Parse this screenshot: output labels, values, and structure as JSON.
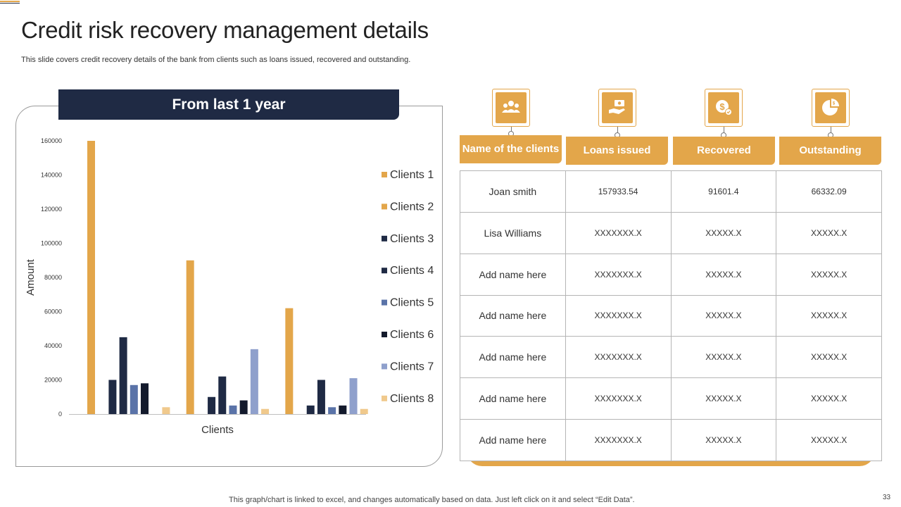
{
  "slide": {
    "title": "Credit risk recovery management details",
    "subtitle": "This slide covers credit recovery  details of the bank from clients such as loans issued, recovered and outstanding.",
    "footer_note": "This graph/chart is linked to excel,  and changes automatically based on data. Just left click on it and select “Edit Data”.",
    "page_number": "33"
  },
  "chart_panel": {
    "header": "From last 1 year"
  },
  "chart_data": {
    "type": "bar",
    "title": "",
    "xlabel": "Clients",
    "ylabel": "Amount",
    "ylim": [
      0,
      160000
    ],
    "yticks": [
      "0",
      "20000",
      "40000",
      "60000",
      "80000",
      "100000",
      "120000",
      "140000",
      "160000"
    ],
    "groups": 3,
    "legend_position": "right",
    "series": [
      {
        "name": "Clients 1",
        "color": "#e3a64a",
        "values": [
          160000,
          90000,
          62000
        ]
      },
      {
        "name": "Clients 2",
        "color": "#e3a64a",
        "values": [
          0,
          0,
          0
        ]
      },
      {
        "name": "Clients 3",
        "color": "#1f2a44",
        "values": [
          20000,
          10000,
          5000
        ]
      },
      {
        "name": "Clients 4",
        "color": "#1f2a44",
        "values": [
          45000,
          22000,
          20000
        ]
      },
      {
        "name": "Clients 5",
        "color": "#5a73a8",
        "values": [
          17000,
          5000,
          4000
        ]
      },
      {
        "name": "Clients 6",
        "color": "#131a2c",
        "values": [
          18000,
          8000,
          5000
        ]
      },
      {
        "name": "Clients 7",
        "color": "#8fa0cc",
        "values": [
          0,
          38000,
          21000
        ]
      },
      {
        "name": "Clients 8",
        "color": "#f0c98c",
        "values": [
          4000,
          3000,
          3000
        ]
      }
    ]
  },
  "table": {
    "columns": [
      {
        "label": "Name of the clients",
        "icon": "users-group-icon"
      },
      {
        "label": "Loans issued",
        "icon": "hand-money-icon"
      },
      {
        "label": "Recovered",
        "icon": "dollar-coin-icon"
      },
      {
        "label": "Outstanding",
        "icon": "pie-chart-icon"
      }
    ],
    "rows": [
      [
        "Joan smith",
        "157933.54",
        "91601.4",
        "66332.09"
      ],
      [
        "Lisa Williams",
        "XXXXXXX.X",
        "XXXXX.X",
        "XXXXX.X"
      ],
      [
        "Add name here",
        "XXXXXXX.X",
        "XXXXX.X",
        "XXXXX.X"
      ],
      [
        "Add name here",
        "XXXXXXX.X",
        "XXXXX.X",
        "XXXXX.X"
      ],
      [
        "Add name here",
        "XXXXXXX.X",
        "XXXXX.X",
        "XXXXX.X"
      ],
      [
        "Add name here",
        "XXXXXXX.X",
        "XXXXX.X",
        "XXXXX.X"
      ],
      [
        "Add name here",
        "XXXXXXX.X",
        "XXXXX.X",
        "XXXXX.X"
      ]
    ]
  },
  "colors": {
    "accent": "#e3a64a",
    "navy": "#1f2a44"
  }
}
